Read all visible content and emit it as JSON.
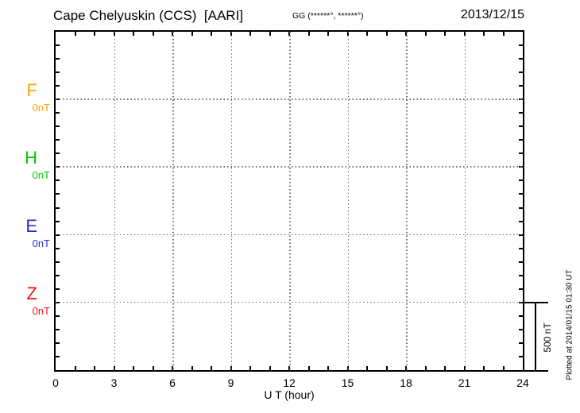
{
  "header": {
    "station": "Cape Chelyuskin (CCS)  [AARI]",
    "coordinates": "GG (******°, ******°)",
    "date": "2013/12/15"
  },
  "axes": {
    "x_label": "U T (hour)",
    "x_tick_labels": [
      "0",
      "3",
      "6",
      "9",
      "12",
      "15",
      "18",
      "21",
      "24"
    ]
  },
  "components": [
    {
      "label": "F",
      "value": "0nT",
      "color": "#FFA500"
    },
    {
      "label": "H",
      "value": "0nT",
      "color": "#00CC00"
    },
    {
      "label": "E",
      "value": "0nT",
      "color": "#2E2ECC"
    },
    {
      "label": "Z",
      "value": "0nT",
      "color": "#EE1111"
    }
  ],
  "scale_bar": {
    "label": "500 nT"
  },
  "plot_note": "Plotted at 2014/01/15 01:30 UT",
  "chart_data": {
    "type": "line",
    "title": "Cape Chelyuskin (CCS) [AARI] magnetogram — 2013/12/15",
    "xlabel": "U T (hour)",
    "x_range": [
      0,
      24
    ],
    "x_major_tick_hours": 3,
    "x_minor_tick_hours": 1,
    "y_unit": "nT",
    "y_minor_tick_nT": 100,
    "component_offset_nT": 500,
    "scale_bar_nT": 500,
    "grid": "dotted vertical lines every 3 hours; dotted horizontal line at each component baseline",
    "legend_position": "left margin (F orange, H green, E blue, Z red)",
    "series": [
      {
        "name": "F",
        "baseline_nT": 0,
        "values": []
      },
      {
        "name": "H",
        "baseline_nT": 0,
        "values": []
      },
      {
        "name": "E",
        "baseline_nT": 0,
        "values": []
      },
      {
        "name": "Z",
        "baseline_nT": 0,
        "values": []
      }
    ]
  }
}
